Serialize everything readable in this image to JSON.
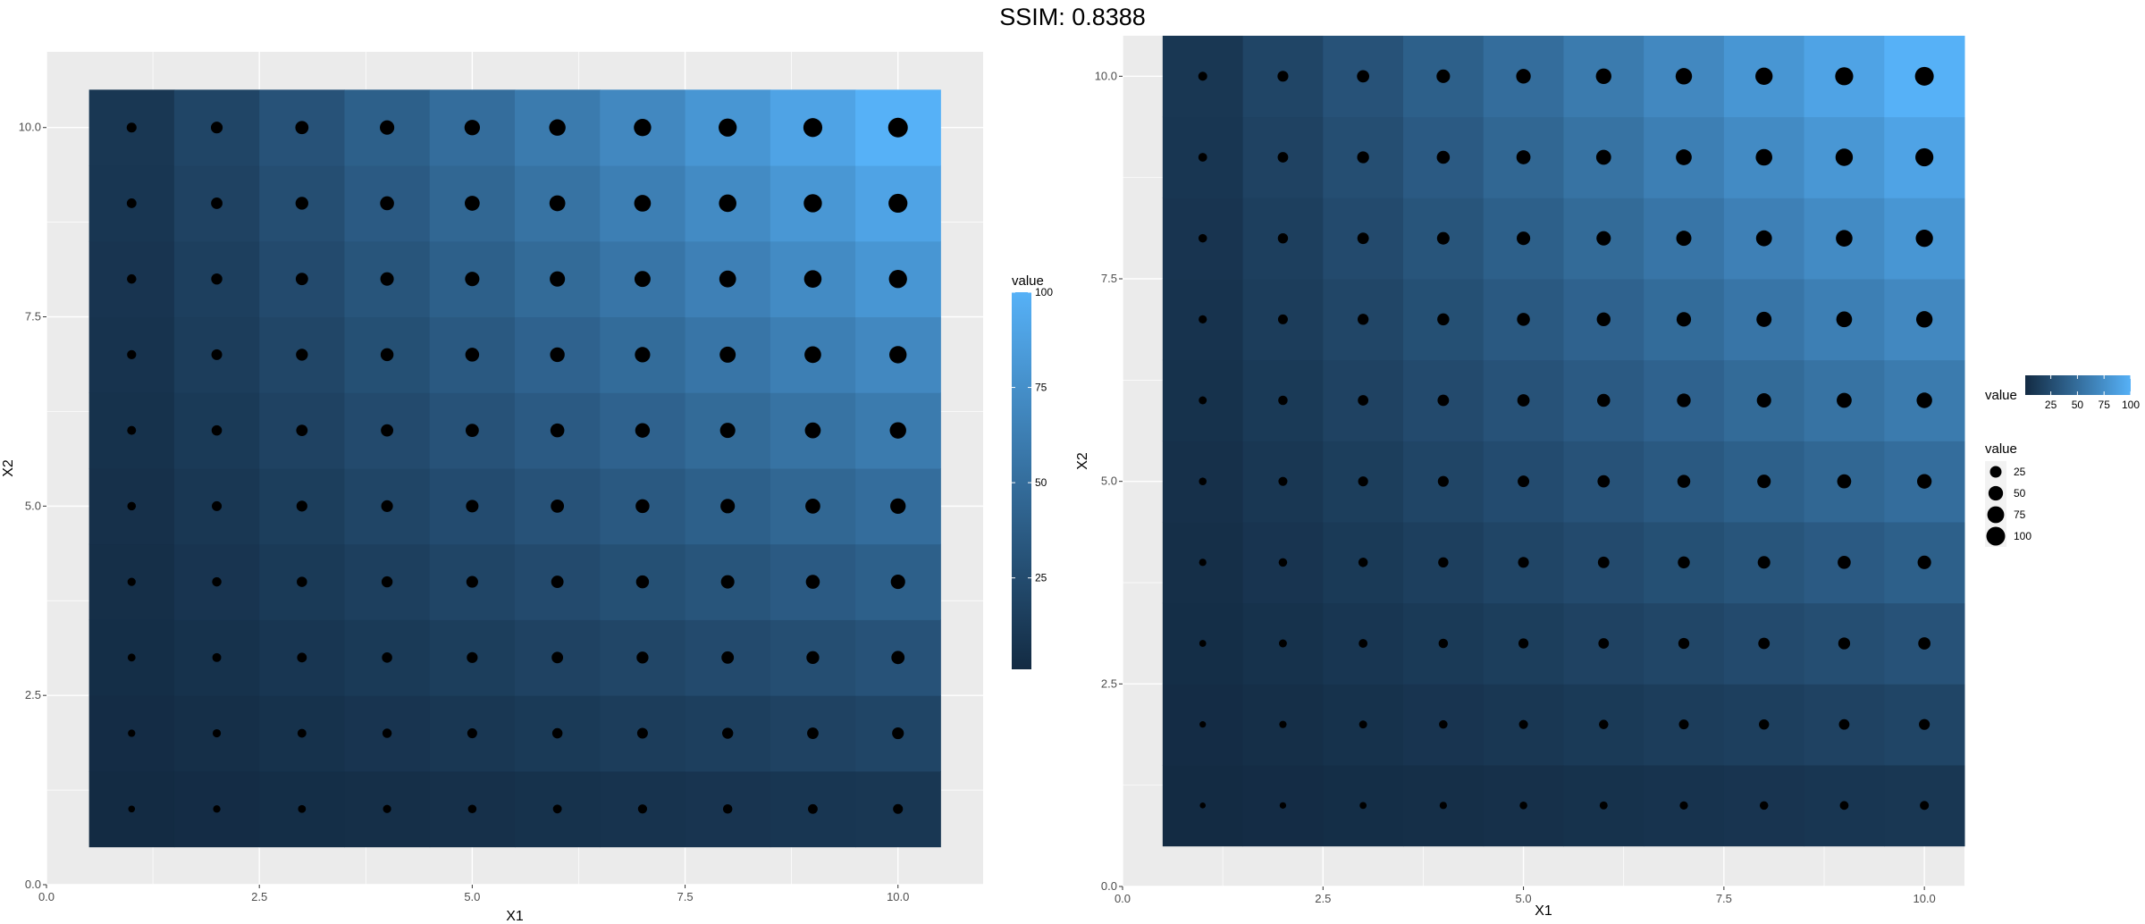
{
  "header": {
    "title": "SSIM: 0.8388"
  },
  "colors": {
    "panel_background": "#ebebeb",
    "grid": "#ffffff",
    "gradient_low": "#132b43",
    "gradient_high": "#56b1f7",
    "point": "#000000"
  },
  "chart_data": [
    {
      "type": "heatmap",
      "title": "",
      "xlabel": "X1",
      "ylabel": "X2",
      "xlim": [
        0,
        11
      ],
      "ylim": [
        0,
        11
      ],
      "xticks": [
        "0.0",
        "2.5",
        "5.0",
        "7.5",
        "10.0"
      ],
      "yticks": [
        "0.0",
        "2.5",
        "5.0",
        "7.5",
        "10.0"
      ],
      "x": [
        1,
        2,
        3,
        4,
        5,
        6,
        7,
        8,
        9,
        10
      ],
      "y": [
        1,
        2,
        3,
        4,
        5,
        6,
        7,
        8,
        9,
        10
      ],
      "value_formula": "value = X1 * X2",
      "grid": true,
      "overlay": "points sized by value",
      "legends": [
        {
          "title": "value",
          "kind": "colorbar",
          "orientation": "vertical",
          "placement": "right",
          "range": [
            1,
            100
          ],
          "labels": [
            "25",
            "50",
            "75",
            "100"
          ]
        }
      ]
    },
    {
      "type": "heatmap",
      "title": "",
      "xlabel": "X1",
      "ylabel": "X2",
      "xlim": [
        0,
        10.5
      ],
      "ylim": [
        0,
        10.5
      ],
      "xticks": [
        "0.0",
        "2.5",
        "5.0",
        "7.5",
        "10.0"
      ],
      "yticks": [
        "0.0",
        "2.5",
        "5.0",
        "7.5",
        "10.0"
      ],
      "x": [
        1,
        2,
        3,
        4,
        5,
        6,
        7,
        8,
        9,
        10
      ],
      "y": [
        1,
        2,
        3,
        4,
        5,
        6,
        7,
        8,
        9,
        10
      ],
      "value_formula": "value = X1 * X2",
      "grid": true,
      "overlay": "points sized by value",
      "legends": [
        {
          "title": "value",
          "kind": "colorbar",
          "orientation": "horizontal",
          "placement": "right",
          "range": [
            1,
            100
          ],
          "labels": [
            "25",
            "50",
            "75",
            "100"
          ]
        },
        {
          "title": "value",
          "kind": "size",
          "placement": "right",
          "labels": [
            "25",
            "50",
            "75",
            "100"
          ],
          "values": [
            25,
            50,
            75,
            100
          ]
        }
      ]
    }
  ]
}
